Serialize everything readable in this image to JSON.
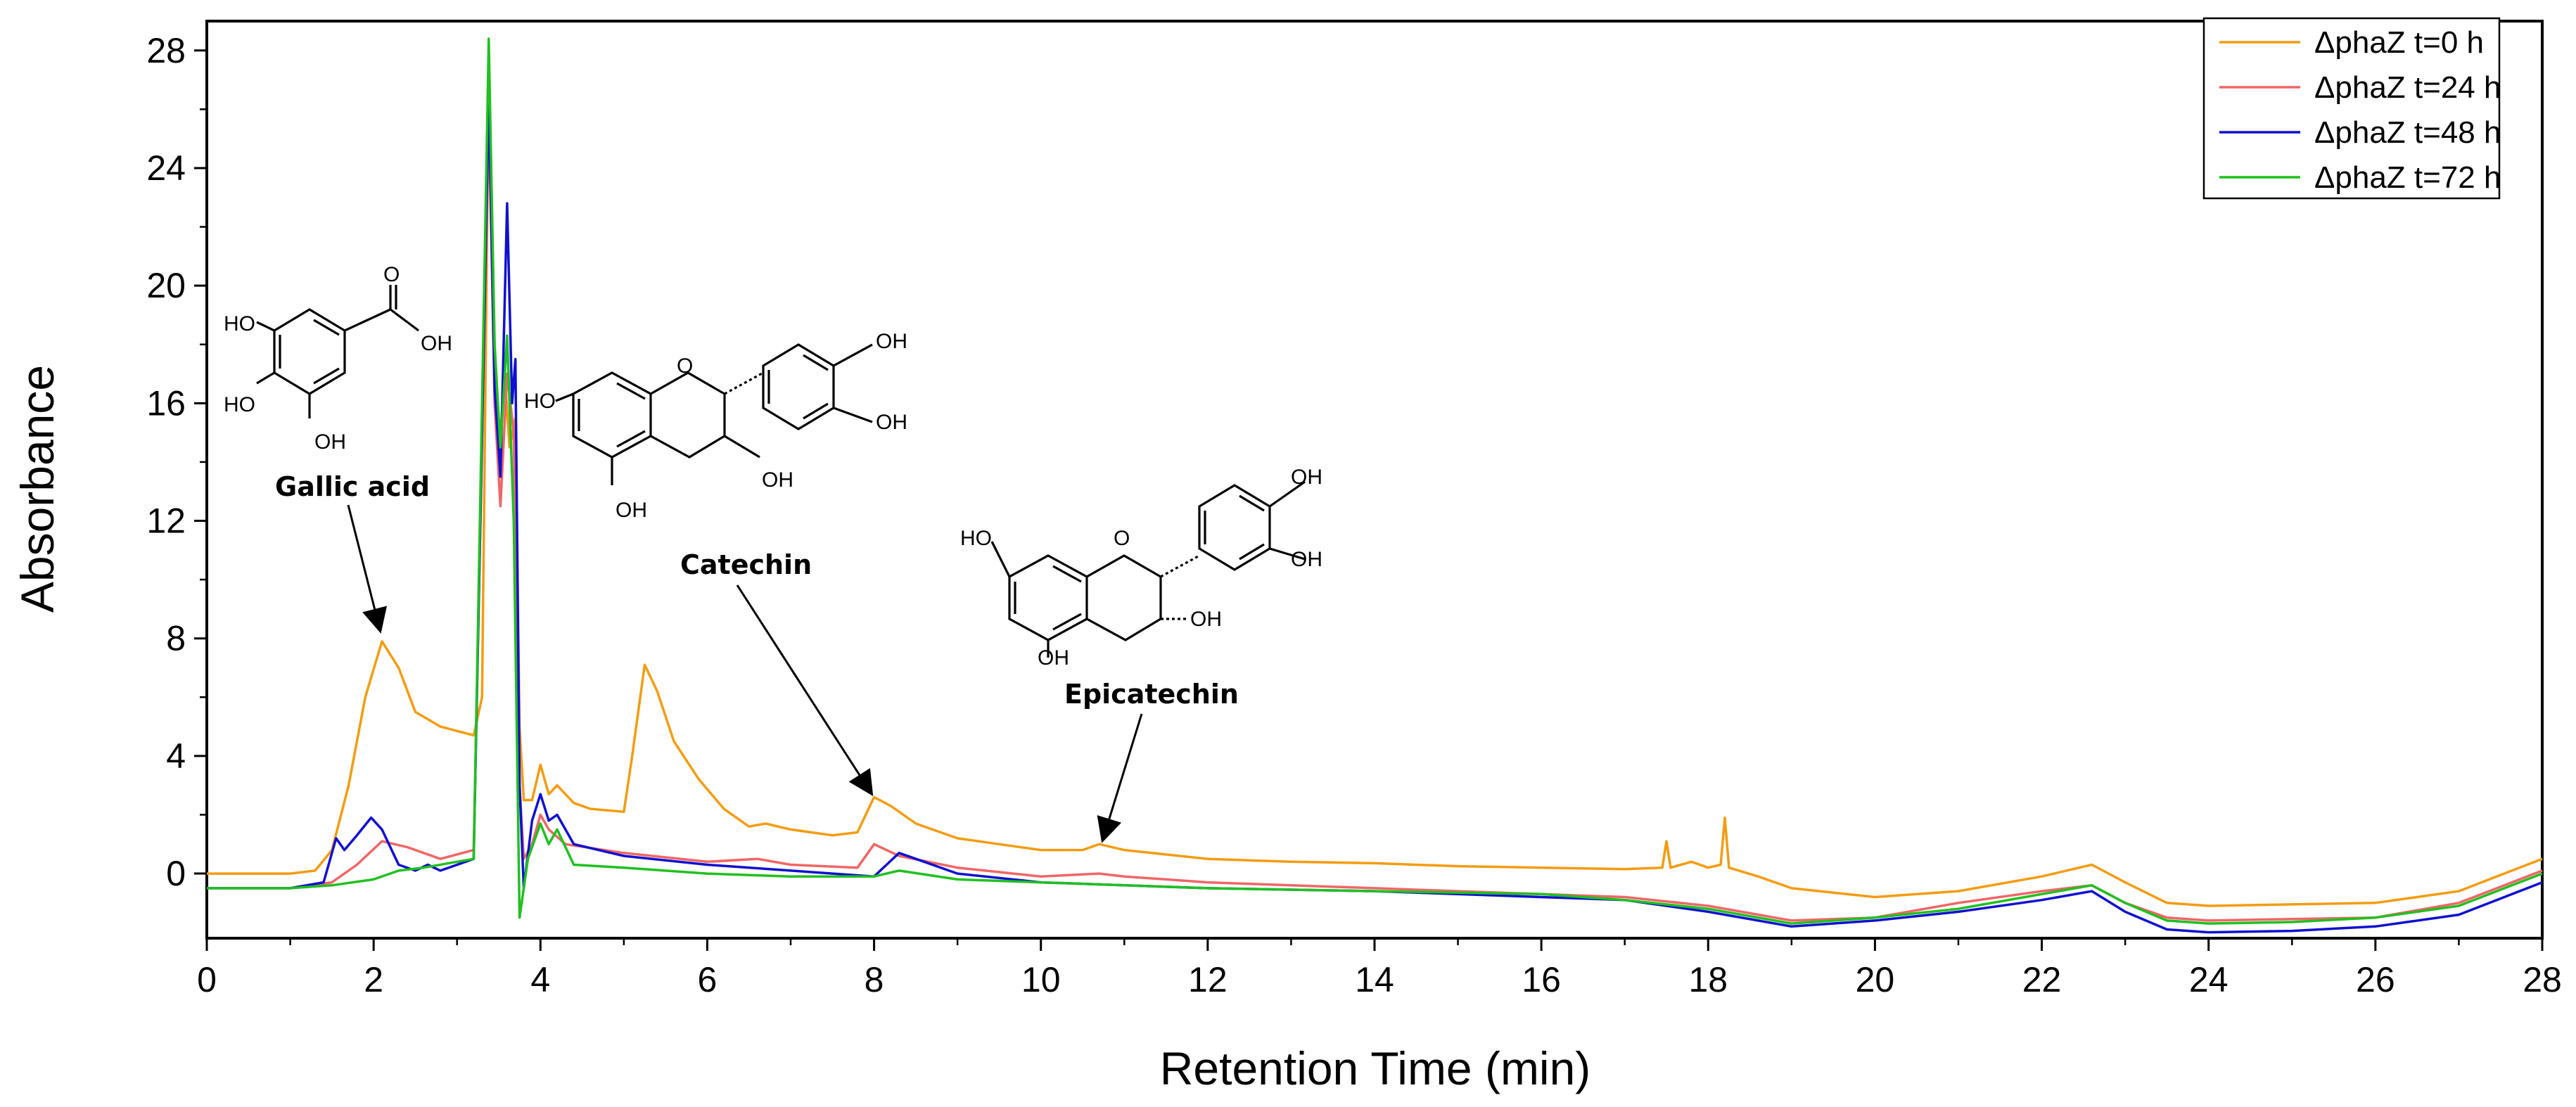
{
  "chart_data": {
    "type": "line",
    "title": "",
    "xlabel": "Retention Time (min)",
    "ylabel": "Absorbance",
    "xlim": [
      0,
      28
    ],
    "ylim": [
      -2.2,
      29
    ],
    "xticks": [
      0,
      2,
      4,
      6,
      8,
      10,
      12,
      14,
      16,
      18,
      20,
      22,
      24,
      26,
      28
    ],
    "yticks": [
      0,
      4,
      8,
      12,
      16,
      20,
      24,
      28
    ],
    "grid": false,
    "legend_position": "top-right",
    "series": [
      {
        "name": "ΔphaZ t=0 h",
        "color": "#f39c12",
        "points": [
          [
            0,
            0
          ],
          [
            1.0,
            0
          ],
          [
            1.3,
            0.1
          ],
          [
            1.5,
            0.8
          ],
          [
            1.7,
            3.0
          ],
          [
            1.9,
            6.0
          ],
          [
            2.1,
            7.9
          ],
          [
            2.3,
            7.0
          ],
          [
            2.5,
            5.5
          ],
          [
            2.8,
            5.0
          ],
          [
            3.2,
            4.7
          ],
          [
            3.3,
            6.0
          ],
          [
            3.38,
            27.0
          ],
          [
            3.45,
            18.0
          ],
          [
            3.5,
            14.0
          ],
          [
            3.57,
            17.0
          ],
          [
            3.63,
            14.5
          ],
          [
            3.7,
            15.5
          ],
          [
            3.75,
            5.0
          ],
          [
            3.8,
            2.5
          ],
          [
            3.9,
            2.5
          ],
          [
            4.0,
            3.7
          ],
          [
            4.1,
            2.7
          ],
          [
            4.2,
            3.0
          ],
          [
            4.4,
            2.4
          ],
          [
            4.6,
            2.2
          ],
          [
            5.0,
            2.1
          ],
          [
            5.1,
            4.0
          ],
          [
            5.25,
            7.1
          ],
          [
            5.4,
            6.2
          ],
          [
            5.6,
            4.5
          ],
          [
            5.9,
            3.2
          ],
          [
            6.2,
            2.2
          ],
          [
            6.5,
            1.6
          ],
          [
            6.7,
            1.7
          ],
          [
            7.0,
            1.5
          ],
          [
            7.5,
            1.3
          ],
          [
            7.8,
            1.4
          ],
          [
            8.0,
            2.6
          ],
          [
            8.2,
            2.3
          ],
          [
            8.5,
            1.7
          ],
          [
            9.0,
            1.2
          ],
          [
            9.5,
            1.0
          ],
          [
            10.0,
            0.8
          ],
          [
            10.5,
            0.8
          ],
          [
            10.7,
            1.0
          ],
          [
            11.0,
            0.8
          ],
          [
            12.0,
            0.5
          ],
          [
            13.0,
            0.4
          ],
          [
            14.0,
            0.35
          ],
          [
            15.0,
            0.25
          ],
          [
            16.0,
            0.2
          ],
          [
            17.0,
            0.15
          ],
          [
            17.45,
            0.2
          ],
          [
            17.5,
            1.1
          ],
          [
            17.55,
            0.2
          ],
          [
            17.8,
            0.4
          ],
          [
            18.0,
            0.2
          ],
          [
            18.15,
            0.3
          ],
          [
            18.2,
            1.9
          ],
          [
            18.25,
            0.2
          ],
          [
            18.6,
            -0.1
          ],
          [
            19.0,
            -0.5
          ],
          [
            20.0,
            -0.8
          ],
          [
            21.0,
            -0.6
          ],
          [
            22.0,
            -0.1
          ],
          [
            22.6,
            0.3
          ],
          [
            23.0,
            -0.3
          ],
          [
            23.5,
            -1.0
          ],
          [
            24.0,
            -1.1
          ],
          [
            25.0,
            -1.05
          ],
          [
            26.0,
            -1.0
          ],
          [
            27.0,
            -0.6
          ],
          [
            28.0,
            0.5
          ]
        ]
      },
      {
        "name": "ΔphaZ t=24 h",
        "color": "#f06666",
        "points": [
          [
            0,
            -0.5
          ],
          [
            1.0,
            -0.5
          ],
          [
            1.5,
            -0.3
          ],
          [
            1.8,
            0.3
          ],
          [
            2.1,
            1.1
          ],
          [
            2.4,
            0.9
          ],
          [
            2.8,
            0.5
          ],
          [
            3.2,
            0.8
          ],
          [
            3.38,
            26.0
          ],
          [
            3.45,
            16.0
          ],
          [
            3.52,
            12.5
          ],
          [
            3.6,
            17.0
          ],
          [
            3.68,
            15.0
          ],
          [
            3.75,
            3.0
          ],
          [
            3.8,
            0.5
          ],
          [
            3.9,
            1.0
          ],
          [
            4.0,
            2.0
          ],
          [
            4.1,
            1.5
          ],
          [
            4.3,
            1.0
          ],
          [
            5.0,
            0.7
          ],
          [
            6.0,
            0.4
          ],
          [
            6.6,
            0.5
          ],
          [
            7.0,
            0.3
          ],
          [
            7.8,
            0.2
          ],
          [
            8.0,
            1.0
          ],
          [
            8.3,
            0.6
          ],
          [
            9.0,
            0.2
          ],
          [
            10.0,
            -0.1
          ],
          [
            10.7,
            0.0
          ],
          [
            11.0,
            -0.1
          ],
          [
            12.0,
            -0.3
          ],
          [
            14.0,
            -0.5
          ],
          [
            16.0,
            -0.7
          ],
          [
            17.0,
            -0.8
          ],
          [
            18.0,
            -1.1
          ],
          [
            19.0,
            -1.6
          ],
          [
            20.0,
            -1.5
          ],
          [
            21.0,
            -1.0
          ],
          [
            22.0,
            -0.6
          ],
          [
            22.6,
            -0.4
          ],
          [
            23.0,
            -1.0
          ],
          [
            23.5,
            -1.5
          ],
          [
            24.0,
            -1.6
          ],
          [
            25.0,
            -1.55
          ],
          [
            26.0,
            -1.5
          ],
          [
            27.0,
            -1.0
          ],
          [
            28.0,
            0.1
          ]
        ]
      },
      {
        "name": "ΔphaZ t=48 h",
        "color": "#1010d0",
        "points": [
          [
            0,
            -0.5
          ],
          [
            1.0,
            -0.5
          ],
          [
            1.4,
            -0.3
          ],
          [
            1.55,
            1.2
          ],
          [
            1.65,
            0.8
          ],
          [
            1.8,
            1.3
          ],
          [
            1.97,
            1.9
          ],
          [
            2.1,
            1.5
          ],
          [
            2.3,
            0.3
          ],
          [
            2.5,
            0.1
          ],
          [
            2.65,
            0.3
          ],
          [
            2.8,
            0.1
          ],
          [
            3.2,
            0.5
          ],
          [
            3.38,
            26.5
          ],
          [
            3.45,
            16.5
          ],
          [
            3.52,
            13.5
          ],
          [
            3.6,
            22.8
          ],
          [
            3.66,
            16.0
          ],
          [
            3.7,
            17.5
          ],
          [
            3.75,
            3.0
          ],
          [
            3.8,
            -0.5
          ],
          [
            3.9,
            1.8
          ],
          [
            4.0,
            2.7
          ],
          [
            4.1,
            1.8
          ],
          [
            4.2,
            2.0
          ],
          [
            4.4,
            1.0
          ],
          [
            5.0,
            0.6
          ],
          [
            6.0,
            0.3
          ],
          [
            7.0,
            0.1
          ],
          [
            8.0,
            -0.1
          ],
          [
            8.3,
            0.7
          ],
          [
            8.6,
            0.4
          ],
          [
            9.0,
            0.0
          ],
          [
            10.0,
            -0.3
          ],
          [
            12.0,
            -0.5
          ],
          [
            14.0,
            -0.6
          ],
          [
            16.0,
            -0.8
          ],
          [
            17.0,
            -0.9
          ],
          [
            18.0,
            -1.3
          ],
          [
            19.0,
            -1.8
          ],
          [
            20.0,
            -1.6
          ],
          [
            21.0,
            -1.3
          ],
          [
            22.0,
            -0.9
          ],
          [
            22.6,
            -0.6
          ],
          [
            23.0,
            -1.3
          ],
          [
            23.5,
            -1.9
          ],
          [
            24.0,
            -2.0
          ],
          [
            25.0,
            -1.95
          ],
          [
            26.0,
            -1.8
          ],
          [
            27.0,
            -1.4
          ],
          [
            28.0,
            -0.3
          ]
        ]
      },
      {
        "name": "ΔphaZ t=72 h",
        "color": "#20c020",
        "points": [
          [
            0,
            -0.5
          ],
          [
            1.0,
            -0.5
          ],
          [
            1.5,
            -0.4
          ],
          [
            2.0,
            -0.2
          ],
          [
            2.3,
            0.1
          ],
          [
            2.6,
            0.2
          ],
          [
            3.0,
            0.4
          ],
          [
            3.2,
            0.5
          ],
          [
            3.38,
            28.4
          ],
          [
            3.45,
            18.0
          ],
          [
            3.52,
            14.5
          ],
          [
            3.6,
            18.3
          ],
          [
            3.68,
            12.0
          ],
          [
            3.75,
            -1.5
          ],
          [
            3.85,
            0.5
          ],
          [
            4.0,
            1.7
          ],
          [
            4.1,
            1.0
          ],
          [
            4.2,
            1.5
          ],
          [
            4.4,
            0.3
          ],
          [
            5.0,
            0.2
          ],
          [
            6.0,
            0.0
          ],
          [
            7.0,
            -0.1
          ],
          [
            8.0,
            -0.1
          ],
          [
            8.3,
            0.1
          ],
          [
            9.0,
            -0.2
          ],
          [
            10.0,
            -0.3
          ],
          [
            12.0,
            -0.5
          ],
          [
            14.0,
            -0.6
          ],
          [
            16.0,
            -0.7
          ],
          [
            17.0,
            -0.9
          ],
          [
            18.0,
            -1.2
          ],
          [
            19.0,
            -1.7
          ],
          [
            20.0,
            -1.5
          ],
          [
            21.0,
            -1.2
          ],
          [
            22.0,
            -0.7
          ],
          [
            22.6,
            -0.4
          ],
          [
            23.0,
            -1.0
          ],
          [
            23.5,
            -1.6
          ],
          [
            24.0,
            -1.7
          ],
          [
            25.0,
            -1.65
          ],
          [
            26.0,
            -1.5
          ],
          [
            27.0,
            -1.1
          ],
          [
            28.0,
            0.0
          ]
        ]
      }
    ],
    "annotations": [
      {
        "text": "Gallic acid",
        "target": [
          2.05,
          8.0
        ]
      },
      {
        "text": "Catechin",
        "target": [
          7.95,
          2.8
        ]
      },
      {
        "text": "Epicatechin",
        "target": [
          10.75,
          1.2
        ]
      }
    ],
    "structure_labels": {
      "hydroxyl": "OH",
      "hydroxyl_left": "HO",
      "ring_oxygen": "O"
    }
  }
}
